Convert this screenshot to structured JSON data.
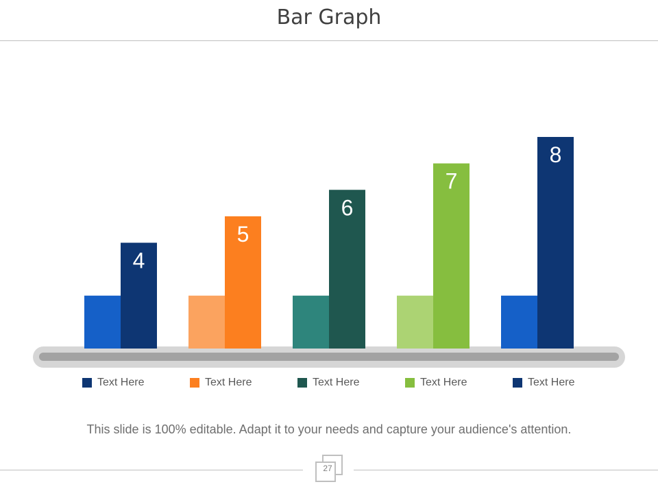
{
  "title": "Bar Graph",
  "footer": {
    "text": "This slide is 100% editable. Adapt it to your needs and capture your audience's attention.",
    "page_number": "27"
  },
  "chart_data": {
    "type": "bar",
    "categories": [
      "Text Here",
      "Text Here",
      "Text Here",
      "Text Here",
      "Text Here"
    ],
    "series": [
      {
        "values": [
          2,
          2,
          2,
          2,
          2
        ],
        "colors": [
          "#1560c8",
          "#fba35f",
          "#2e857c",
          "#acd373",
          "#1560c8"
        ]
      },
      {
        "values": [
          4,
          5,
          6,
          7,
          8
        ],
        "colors": [
          "#0e3673",
          "#fc7f1f",
          "#1f574f",
          "#86be3f",
          "#0e3673"
        ]
      }
    ],
    "data_labels": [
      "4",
      "5",
      "6",
      "7",
      "8"
    ],
    "legend": {
      "position": "bottom",
      "labels": [
        "Text Here",
        "Text Here",
        "Text Here",
        "Text Here",
        "Text Here"
      ],
      "colors": [
        "#0e3673",
        "#fc7f1f",
        "#1f574f",
        "#86be3f",
        "#0e3673"
      ]
    },
    "ylim": [
      0,
      8
    ],
    "grid": false,
    "xlabel": "",
    "ylabel": ""
  }
}
